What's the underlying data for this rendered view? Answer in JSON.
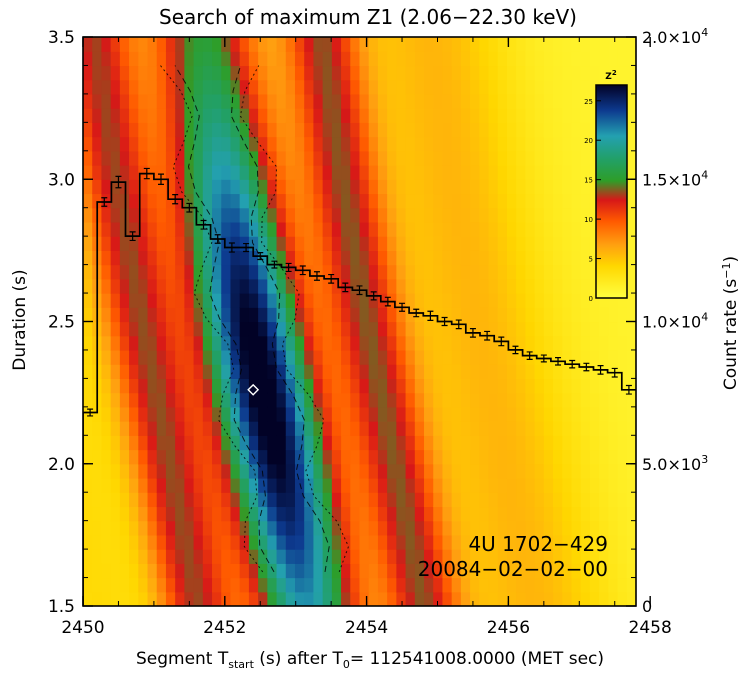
{
  "chart_data": {
    "type": "heatmap",
    "title": "Search of maximum Z1 (2.06−22.30 keV)",
    "xlabel_parts": {
      "pre": "Segment T",
      "sub": "start",
      "post": " (s) after T",
      "sub2": "0",
      "tail": "= 112541008.0000 (MET sec)"
    },
    "ylabel": "Duration (s)",
    "y2label_parts": {
      "pre": "Count rate (s",
      "sup": "−1",
      "post": ")"
    },
    "xlim": [
      2450,
      2457.8
    ],
    "ylim": [
      1.5,
      3.5
    ],
    "y2lim": [
      0,
      20000
    ],
    "x_ticks": [
      2450,
      2452,
      2454,
      2456,
      2458
    ],
    "x_tick_labels": [
      "2450",
      "2452",
      "2454",
      "2456",
      "2458"
    ],
    "y_ticks": [
      1.5,
      2.0,
      2.5,
      3.0,
      3.5
    ],
    "y_tick_labels": [
      "1.5",
      "2.0",
      "2.5",
      "3.0",
      "3.5"
    ],
    "y2_ticks": [
      0,
      5000,
      10000,
      15000,
      20000
    ],
    "y2_tick_labels": [
      {
        "mant": "0",
        "exp": ""
      },
      {
        "mant": "5.0×10",
        "exp": "3"
      },
      {
        "mant": "1.0×10",
        "exp": "4"
      },
      {
        "mant": "1.5×10",
        "exp": "4"
      },
      {
        "mant": "2.0×10",
        "exp": "4"
      }
    ],
    "colorbar": {
      "label": "Z",
      "label_sup": "2",
      "range": [
        0,
        27
      ],
      "ticks": [
        0,
        5,
        10,
        15,
        20,
        25
      ],
      "tick_labels": [
        "0",
        "5",
        "10",
        "15",
        "20",
        "25"
      ]
    },
    "z_model": {
      "peak_value": 27,
      "ridge": [
        [
          2.0,
          2452.75
        ],
        [
          2.5,
          2452.35
        ],
        [
          3.0,
          2452.0
        ],
        [
          3.5,
          2451.7
        ]
      ],
      "ridge_width_s": 0.78,
      "max_marker": {
        "x": 2452.4,
        "y": 2.26
      }
    },
    "lightcurve": {
      "bin_s": 0.2,
      "start": 2450.0,
      "count_rate": [
        6800,
        14200,
        14900,
        13000,
        15200,
        15000,
        14300,
        14000,
        13400,
        12900,
        12600,
        12600,
        12300,
        12000,
        11900,
        11800,
        11600,
        11500,
        11200,
        11100,
        10900,
        10700,
        10500,
        10300,
        10200,
        10000,
        9900,
        9600,
        9500,
        9300,
        9000,
        8800,
        8700,
        8600,
        8500,
        8400,
        8300,
        8200,
        7600
      ],
      "error": [
        120,
        150,
        200,
        150,
        180,
        180,
        160,
        150,
        150,
        150,
        160,
        140,
        120,
        120,
        140,
        150,
        150,
        150,
        150,
        150,
        140,
        150,
        140,
        130,
        160,
        140,
        150,
        150,
        150,
        150,
        130,
        130,
        120,
        130,
        130,
        130,
        150,
        150,
        150
      ]
    },
    "annotations": [
      "4U 1702−429",
      "20084−02−02−00"
    ]
  }
}
